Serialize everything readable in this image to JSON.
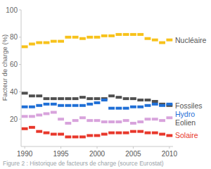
{
  "chart_data": {
    "type": "line",
    "title": "Figure 2 : Historique de facteurs de charge (source Eurostat)",
    "y_label": "Facteur de charge (%)",
    "x": [
      1990,
      1991,
      1992,
      1993,
      1994,
      1995,
      1996,
      1997,
      1998,
      1999,
      2000,
      2001,
      2002,
      2003,
      2004,
      2005,
      2006,
      2007,
      2008,
      2009,
      2010
    ],
    "xlim": [
      1989.5,
      2010.5
    ],
    "xticks": [
      1990,
      1995,
      2000,
      2005,
      2010
    ],
    "ylim": [
      0,
      100
    ],
    "yticks": [
      20,
      40,
      60,
      80,
      100
    ],
    "grid": false,
    "legend": "right",
    "marker": "dash",
    "line_style": "none",
    "series": [
      {
        "name": "Nucléaire",
        "color": "#f7c21b",
        "values": [
          73,
          75,
          76,
          76,
          77,
          77,
          80,
          80,
          79,
          80,
          80,
          81,
          81,
          82,
          82,
          82,
          82,
          79,
          78,
          76,
          78
        ]
      },
      {
        "name": "Fossiles",
        "color": "#505050",
        "values": [
          39,
          37,
          37,
          35,
          35,
          35,
          35,
          35,
          36,
          35,
          35,
          35,
          37,
          36,
          35,
          35,
          34,
          34,
          33,
          31,
          30
        ]
      },
      {
        "name": "Hydro",
        "color": "#1f6fd6",
        "values": [
          29,
          29,
          30,
          31,
          31,
          30,
          30,
          30,
          30,
          31,
          32,
          34,
          28,
          28,
          28,
          29,
          29,
          30,
          31,
          30,
          31
        ]
      },
      {
        "name": "Eolien",
        "color": "#d8a3dc",
        "values": [
          22,
          22,
          23,
          24,
          25,
          20,
          17,
          19,
          21,
          19,
          19,
          18,
          18,
          18,
          19,
          17,
          18,
          20,
          20,
          19,
          21
        ]
      },
      {
        "name": "Solaire",
        "color": "#e8372b",
        "values": [
          13,
          14,
          11,
          10,
          9,
          9,
          7,
          7,
          7,
          8,
          8,
          9,
          10,
          10,
          10,
          11,
          11,
          10,
          10,
          9,
          8
        ]
      }
    ]
  }
}
